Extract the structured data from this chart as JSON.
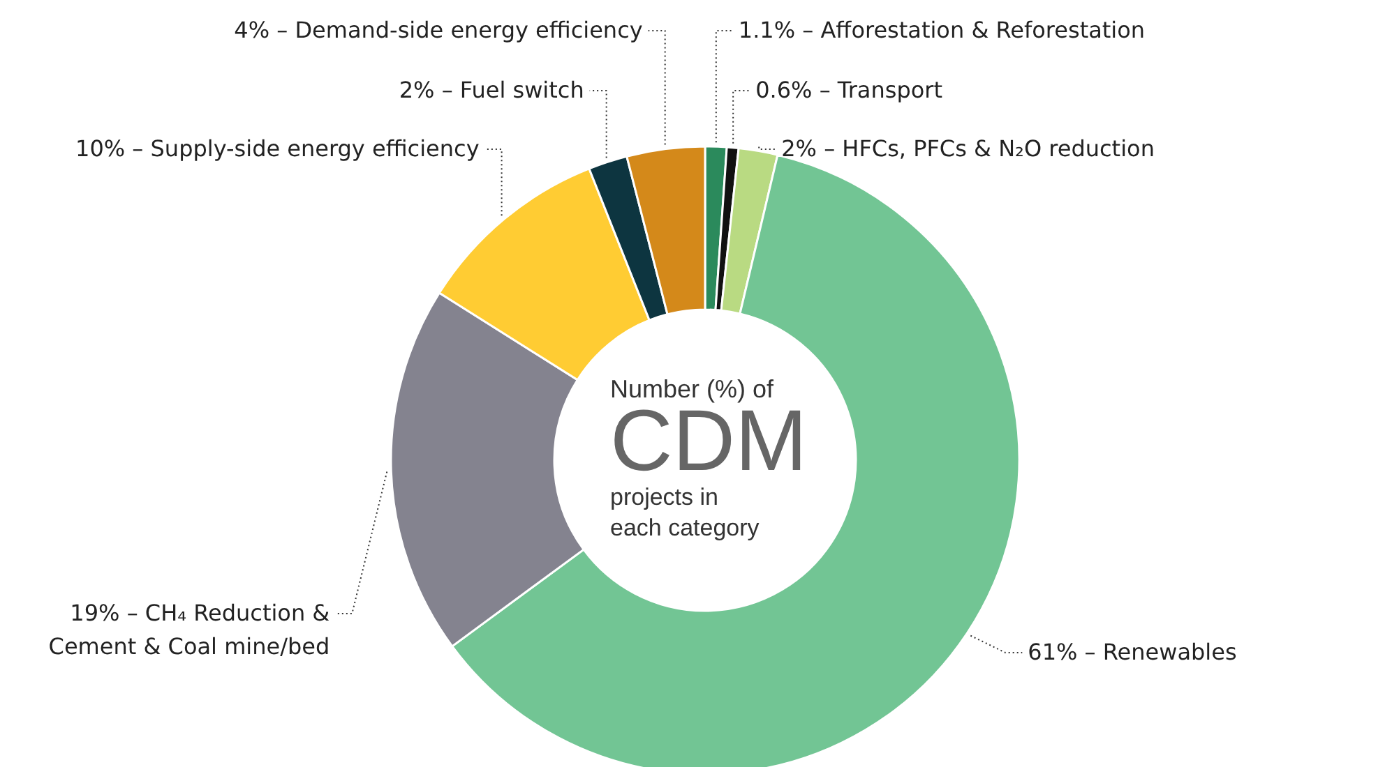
{
  "chart_data": {
    "type": "donut",
    "categories": [
      "Afforestation & Reforestation",
      "Transport",
      "HFCs, PFCs & N₂O reduction",
      "Renewables",
      "CH₄ Reduction &\nCement & Coal mine/bed",
      "Supply-side energy efficiency",
      "Fuel switch",
      "Demand-side energy efficiency"
    ],
    "values": [
      1.1,
      0.6,
      2,
      61,
      19,
      10,
      2,
      4
    ],
    "value_labels": [
      "1.1%",
      "0.6%",
      "2%",
      "61%",
      "19%",
      "10%",
      "2%",
      "4%"
    ],
    "colors": [
      "#2b8a5c",
      "#111111",
      "#b9da82",
      "#72c594",
      "#84838f",
      "#ffcc33",
      "#0d3540",
      "#d4891a"
    ],
    "annotations": [
      "Number (%) of",
      "CDM",
      "projects in",
      "each category"
    ]
  }
}
